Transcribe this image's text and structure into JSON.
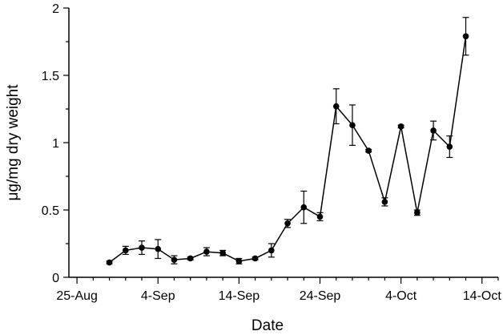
{
  "chart_data": {
    "type": "line",
    "title": "",
    "xlabel": "Date",
    "ylabel": "μg/mg dry weight",
    "x_axis": {
      "tick_labels": [
        "25-Aug",
        "4-Sep",
        "14-Sep",
        "24-Sep",
        "4-Oct",
        "14-Oct"
      ],
      "tick_dates": [
        "2022-08-25",
        "2022-09-04",
        "2022-09-14",
        "2022-09-24",
        "2022-10-04",
        "2022-10-14"
      ],
      "range": [
        "2022-08-24",
        "2022-10-16"
      ]
    },
    "y_axis": {
      "tick_labels": [
        "0",
        "0.5",
        "1",
        "1.5",
        "2"
      ],
      "ylim": [
        0,
        2
      ]
    },
    "grid": false,
    "legend": "none",
    "series": [
      {
        "color": "#000000",
        "marker": "circle",
        "points": [
          {
            "x": "2022-08-29",
            "y": 0.11,
            "err": 0.01
          },
          {
            "x": "2022-08-31",
            "y": 0.2,
            "err": 0.03
          },
          {
            "x": "2022-09-02",
            "y": 0.22,
            "err": 0.05
          },
          {
            "x": "2022-09-04",
            "y": 0.21,
            "err": 0.07
          },
          {
            "x": "2022-09-06",
            "y": 0.13,
            "err": 0.03
          },
          {
            "x": "2022-09-08",
            "y": 0.14,
            "err": 0.01
          },
          {
            "x": "2022-09-10",
            "y": 0.19,
            "err": 0.03
          },
          {
            "x": "2022-09-12",
            "y": 0.18,
            "err": 0.02
          },
          {
            "x": "2022-09-14",
            "y": 0.12,
            "err": 0.02
          },
          {
            "x": "2022-09-16",
            "y": 0.14,
            "err": 0.01
          },
          {
            "x": "2022-09-18",
            "y": 0.2,
            "err": 0.05
          },
          {
            "x": "2022-09-20",
            "y": 0.4,
            "err": 0.03
          },
          {
            "x": "2022-09-22",
            "y": 0.52,
            "err": 0.12
          },
          {
            "x": "2022-09-24",
            "y": 0.45,
            "err": 0.03
          },
          {
            "x": "2022-09-26",
            "y": 1.27,
            "err": 0.13
          },
          {
            "x": "2022-09-28",
            "y": 1.13,
            "err": 0.15
          },
          {
            "x": "2022-09-30",
            "y": 0.94,
            "err": 0.01
          },
          {
            "x": "2022-10-02",
            "y": 0.56,
            "err": 0.03
          },
          {
            "x": "2022-10-04",
            "y": 1.12,
            "err": 0.01
          },
          {
            "x": "2022-10-06",
            "y": 0.48,
            "err": 0.02
          },
          {
            "x": "2022-10-08",
            "y": 1.09,
            "err": 0.07
          },
          {
            "x": "2022-10-10",
            "y": 0.97,
            "err": 0.08
          },
          {
            "x": "2022-10-12",
            "y": 1.79,
            "err": 0.14
          }
        ]
      }
    ]
  }
}
